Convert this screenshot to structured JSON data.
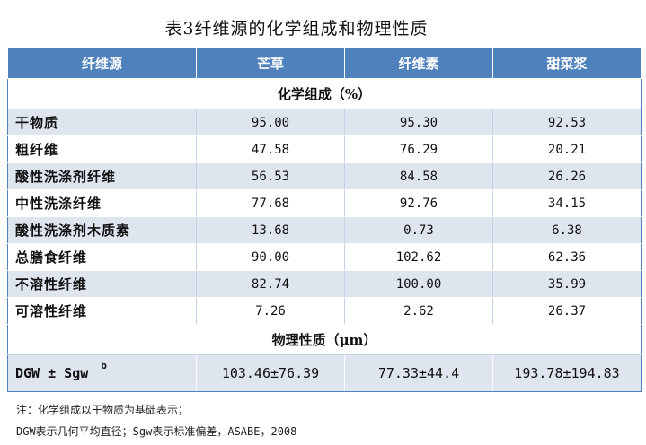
{
  "title": "表3纤维源的化学组成和物理性质",
  "table": {
    "headers": [
      "纤维源",
      "芒草",
      "纤维素",
      "甜菜浆"
    ],
    "section_chem": "化学组成（%）",
    "rows": [
      {
        "label": "干物质",
        "values": [
          "95.00",
          "95.30",
          "92.53"
        ]
      },
      {
        "label": "粗纤维",
        "values": [
          "47.58",
          "76.29",
          "20.21"
        ]
      },
      {
        "label": "酸性洗涤剂纤维",
        "values": [
          "56.53",
          "84.58",
          "26.26"
        ]
      },
      {
        "label": "中性洗涤纤维",
        "values": [
          "77.68",
          "92.76",
          "34.15"
        ]
      },
      {
        "label": "酸性洗涤剂木质素",
        "values": [
          "13.68",
          "0.73",
          "6.38"
        ]
      },
      {
        "label": "总膳食纤维",
        "values": [
          "90.00",
          "102.62",
          "62.36"
        ]
      },
      {
        "label": "不溶性纤维",
        "values": [
          "82.74",
          "100.00",
          "35.99"
        ]
      },
      {
        "label": "可溶性纤维",
        "values": [
          "7.26",
          "2.62",
          "26.37"
        ]
      }
    ],
    "section_phys": "物理性质（μm）",
    "dgw_row": {
      "label": "DGW ± Sgw",
      "superscript": "b",
      "values": [
        "103.46±76.39",
        "77.33±44.4",
        "193.78±194.83"
      ]
    }
  },
  "notes": {
    "line1": "注：化学组成以干物质为基础表示；",
    "line2": "DGW表示几何平均直径；Sgw表示标准偏差，ASABE，2008"
  }
}
